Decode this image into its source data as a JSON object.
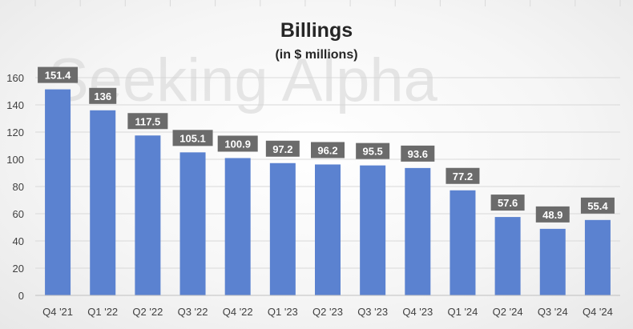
{
  "chart_data": {
    "type": "bar",
    "title": "Billings",
    "subtitle": "(in $ millions)",
    "xlabel": "",
    "ylabel": "",
    "categories": [
      "Q4 '21",
      "Q1 '22",
      "Q2 '22",
      "Q3 '22",
      "Q4 '22",
      "Q1 '23",
      "Q2 '23",
      "Q3 '23",
      "Q4 '23",
      "Q1 '24",
      "Q2 '24",
      "Q3 '24",
      "Q4 '24"
    ],
    "values": [
      151.4,
      136,
      117.5,
      105.1,
      100.9,
      97.2,
      96.2,
      95.5,
      93.6,
      77.2,
      57.6,
      48.9,
      55.4
    ],
    "data_labels": [
      "151.4",
      "136",
      "117.5",
      "105.1",
      "100.9",
      "97.2",
      "96.2",
      "95.5",
      "93.6",
      "77.2",
      "57.6",
      "48.9",
      "55.4"
    ],
    "ylim": [
      0,
      160
    ],
    "yticks": [
      0,
      20,
      40,
      60,
      80,
      100,
      120,
      140,
      160
    ],
    "grid": true,
    "legend": "none",
    "colors": {
      "bar": "#5b82d0",
      "label_box": "#6b6b6b",
      "label_text": "#ffffff",
      "grid": "#d9d9d9",
      "axis_text": "#404040"
    }
  },
  "watermark": "Seeking Alpha"
}
